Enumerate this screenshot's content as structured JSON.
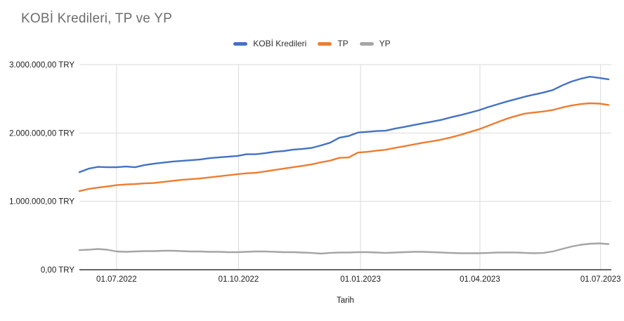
{
  "title": "KOBİ Kredileri, TP ve YP",
  "colors": {
    "background": "#ffffff",
    "title": "#6d6d6d",
    "grid": "#d9d9d9",
    "axis": "#333333",
    "tick_label": "#1a1a1a",
    "legend_label": "#2e2e2e",
    "series_blue": "#4472c4",
    "series_orange": "#ed7d31",
    "series_gray": "#a5a5a5"
  },
  "chart_data": {
    "type": "line",
    "title": "KOBİ Kredileri, TP ve YP",
    "xlabel": "Tarih",
    "ylabel": "",
    "unit": "TRY",
    "ylim": [
      0,
      3000000
    ],
    "grid": true,
    "legend_position": "top-center",
    "y_ticks": [
      {
        "value": 3000000,
        "label": "3.000.000,00 TRY"
      },
      {
        "value": 2000000,
        "label": "2.000.000,00 TRY"
      },
      {
        "value": 1000000,
        "label": "1.000.000,00 TRY"
      },
      {
        "value": 0,
        "label": "0,00 TRY"
      }
    ],
    "x_tick_labels": [
      "01.07.2022",
      "01.10.2022",
      "01.01.2023",
      "01.04.2023",
      "01.07.2023"
    ],
    "x": [
      "03.06.2022",
      "10.06.2022",
      "17.06.2022",
      "24.06.2022",
      "01.07.2022",
      "08.07.2022",
      "15.07.2022",
      "22.07.2022",
      "29.07.2022",
      "05.08.2022",
      "12.08.2022",
      "19.08.2022",
      "26.08.2022",
      "02.09.2022",
      "09.09.2022",
      "16.09.2022",
      "23.09.2022",
      "30.09.2022",
      "07.10.2022",
      "14.10.2022",
      "21.10.2022",
      "28.10.2022",
      "04.11.2022",
      "11.11.2022",
      "18.11.2022",
      "25.11.2022",
      "02.12.2022",
      "09.12.2022",
      "16.12.2022",
      "23.12.2022",
      "30.12.2022",
      "06.01.2023",
      "13.01.2023",
      "20.01.2023",
      "27.01.2023",
      "03.02.2023",
      "10.02.2023",
      "17.02.2023",
      "24.02.2023",
      "03.03.2023",
      "10.03.2023",
      "17.03.2023",
      "24.03.2023",
      "31.03.2023",
      "07.04.2023",
      "14.04.2023",
      "21.04.2023",
      "28.04.2023",
      "05.05.2023",
      "12.05.2023",
      "19.05.2023",
      "26.05.2023",
      "02.06.2023",
      "09.06.2023",
      "16.06.2023",
      "23.06.2023",
      "30.06.2023",
      "07.07.2023"
    ],
    "series": [
      {
        "name": "KOBİ Kredileri",
        "color": "#4472c4",
        "values": [
          1427000,
          1478000,
          1504000,
          1499000,
          1499000,
          1509000,
          1499000,
          1530000,
          1550000,
          1566000,
          1581000,
          1591000,
          1602000,
          1612000,
          1632000,
          1643000,
          1653000,
          1663000,
          1689000,
          1689000,
          1704000,
          1725000,
          1735000,
          1756000,
          1766000,
          1781000,
          1817000,
          1858000,
          1930000,
          1956000,
          2007000,
          2017000,
          2028000,
          2033000,
          2064000,
          2089000,
          2115000,
          2141000,
          2166000,
          2192000,
          2228000,
          2259000,
          2295000,
          2331000,
          2377000,
          2418000,
          2459000,
          2495000,
          2531000,
          2562000,
          2592000,
          2628000,
          2695000,
          2752000,
          2793000,
          2823000,
          2806000,
          2785000
        ]
      },
      {
        "name": "TP",
        "color": "#ed7d31",
        "values": [
          1150000,
          1181000,
          1201000,
          1217000,
          1237000,
          1247000,
          1253000,
          1263000,
          1268000,
          1283000,
          1299000,
          1314000,
          1324000,
          1335000,
          1350000,
          1365000,
          1381000,
          1396000,
          1411000,
          1417000,
          1437000,
          1458000,
          1478000,
          1499000,
          1519000,
          1540000,
          1571000,
          1596000,
          1637000,
          1642000,
          1714000,
          1724000,
          1740000,
          1755000,
          1781000,
          1806000,
          1832000,
          1858000,
          1878000,
          1904000,
          1935000,
          1971000,
          2012000,
          2053000,
          2104000,
          2156000,
          2207000,
          2248000,
          2284000,
          2300000,
          2315000,
          2336000,
          2372000,
          2402000,
          2423000,
          2435000,
          2430000,
          2410000
        ]
      },
      {
        "name": "YP",
        "color": "#a5a5a5",
        "values": [
          287000,
          293000,
          303000,
          293000,
          267000,
          262000,
          267000,
          272000,
          272000,
          277000,
          277000,
          272000,
          267000,
          267000,
          262000,
          262000,
          257000,
          257000,
          262000,
          267000,
          267000,
          262000,
          257000,
          257000,
          252000,
          246000,
          236000,
          246000,
          252000,
          252000,
          257000,
          257000,
          252000,
          246000,
          252000,
          257000,
          262000,
          262000,
          257000,
          252000,
          246000,
          241000,
          241000,
          241000,
          246000,
          252000,
          252000,
          252000,
          246000,
          241000,
          246000,
          267000,
          303000,
          339000,
          365000,
          380000,
          385000,
          375000
        ]
      }
    ]
  }
}
